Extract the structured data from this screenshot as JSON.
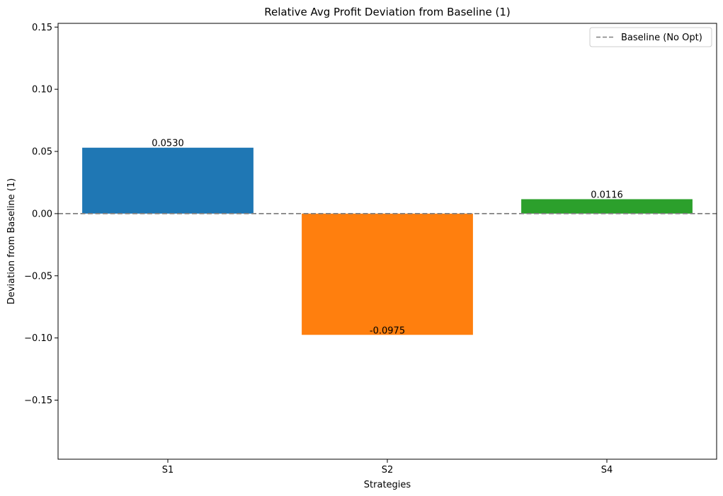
{
  "chart_data": {
    "type": "bar",
    "title": "Relative Avg Profit Deviation from Baseline (1)",
    "xlabel": "Strategies",
    "ylabel": "Deviation from Baseline (1)",
    "categories": [
      "S1",
      "S2",
      "S4"
    ],
    "values": [
      0.053,
      -0.0975,
      0.0116
    ],
    "value_labels": [
      "0.0530",
      "-0.0975",
      "0.0116"
    ],
    "colors": [
      "#1f77b4",
      "#ff7f0e",
      "#2ca02c"
    ],
    "ylim": [
      -0.1975,
      0.153
    ],
    "yticks": [
      -0.15,
      -0.1,
      -0.05,
      0.0,
      0.05,
      0.1,
      0.15
    ],
    "ytick_labels": [
      "−0.15",
      "−0.10",
      "−0.05",
      "0.00",
      "0.05",
      "0.10",
      "0.15"
    ],
    "baseline": {
      "value": 0,
      "label": "Baseline (No Opt)",
      "color": "#808080",
      "style": "dashed"
    },
    "legend": {
      "position": "top-right",
      "entries": [
        "Baseline (No Opt)"
      ]
    },
    "grid": false
  }
}
